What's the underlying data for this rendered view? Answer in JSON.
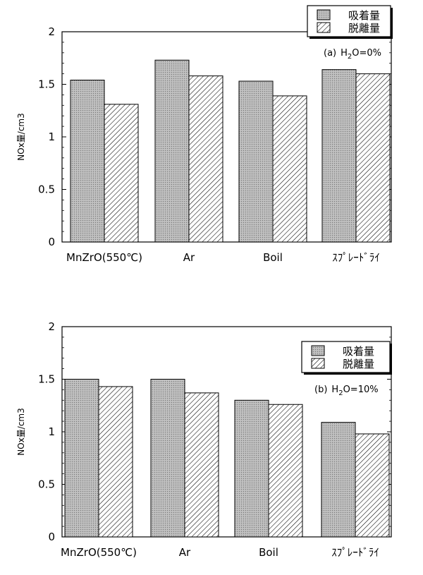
{
  "chart_data": [
    {
      "type": "bar",
      "panel_label": "(a)",
      "condition": "H2O=0%",
      "ylabel": "NOx量/cm3",
      "ylim": [
        0,
        2
      ],
      "yticks": [
        "0",
        "0.5",
        "1",
        "1.5",
        "2"
      ],
      "categories": [
        "MnZrO(550℃)",
        "Ar",
        "Boil",
        "ｽﾌﾟﾚｰﾄﾞﾗｲ"
      ],
      "legend_position": "top-right",
      "series": [
        {
          "name": "吸着量",
          "pattern": "stipple",
          "values": [
            1.54,
            1.73,
            1.53,
            1.64
          ]
        },
        {
          "name": "脱離量",
          "pattern": "hatch",
          "values": [
            1.31,
            1.58,
            1.39,
            1.6
          ]
        }
      ]
    },
    {
      "type": "bar",
      "panel_label": "(b)",
      "condition": "H2O=10%",
      "ylabel": "NOx量/cm3",
      "ylim": [
        0,
        2
      ],
      "yticks": [
        "0",
        "0.5",
        "1",
        "1.5",
        "2"
      ],
      "categories": [
        "MnZrO(550℃)",
        "Ar",
        "Boil",
        "ｽﾌﾟﾚｰﾄﾞﾗｲ"
      ],
      "legend_position": "top-right",
      "series": [
        {
          "name": "吸着量",
          "pattern": "stipple",
          "values": [
            1.5,
            1.5,
            1.3,
            1.09
          ]
        },
        {
          "name": "脱離量",
          "pattern": "hatch",
          "values": [
            1.43,
            1.37,
            1.26,
            0.98
          ]
        }
      ]
    }
  ],
  "colors": {
    "stipple_fill": "#b8b8b8",
    "hatch_fill": "#ffffff",
    "ink": "#000000"
  }
}
